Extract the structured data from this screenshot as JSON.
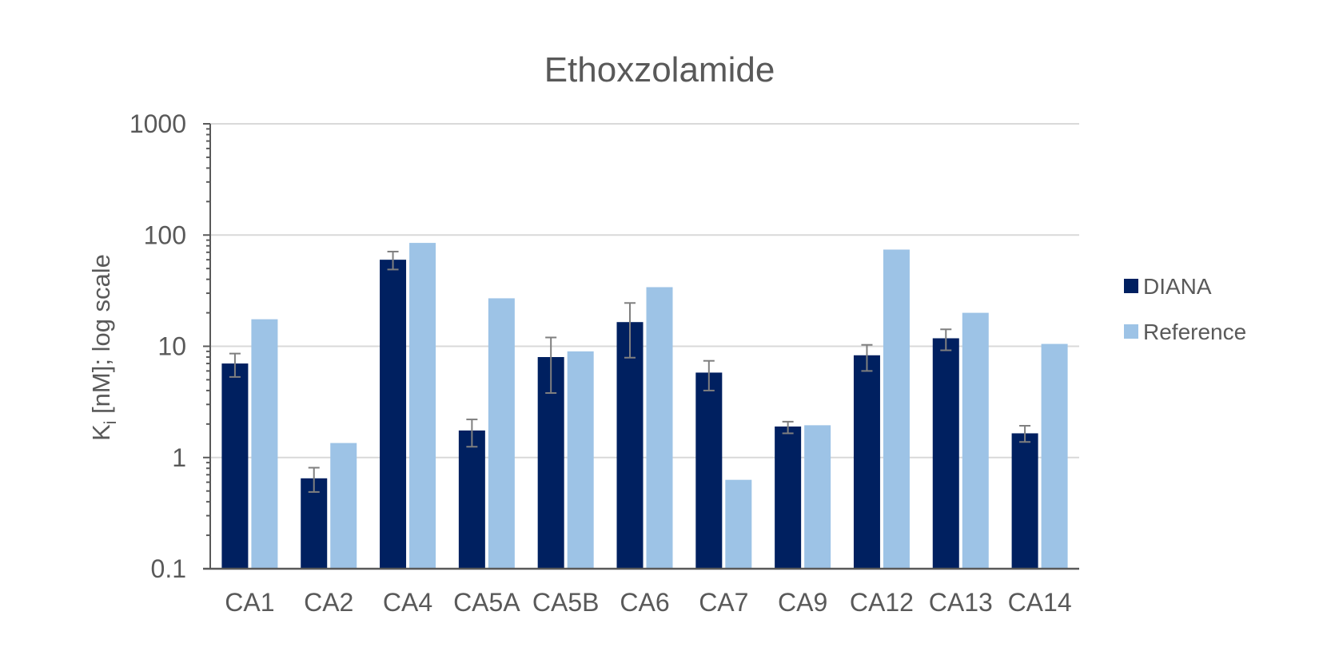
{
  "chart_data": {
    "type": "bar",
    "title": "Ethoxzolamide",
    "ylabel_main": "K",
    "ylabel_sub": "i",
    "ylabel_rest": " [nM]; log scale",
    "xlabel": "",
    "yscale": "log",
    "ylim": [
      0.1,
      1000
    ],
    "yticks": [
      "0.1",
      "1",
      "10",
      "100",
      "1000"
    ],
    "grid": true,
    "legend_position": "right",
    "categories": [
      "CA1",
      "CA2",
      "CA4",
      "CA5A",
      "CA5B",
      "CA6",
      "CA7",
      "CA9",
      "CA12",
      "CA13",
      "CA14"
    ],
    "series": [
      {
        "name": "DIANA",
        "color": "#002060",
        "values": [
          7.0,
          0.65,
          60,
          1.75,
          8.0,
          16.5,
          5.8,
          1.9,
          8.3,
          11.8,
          1.65
        ],
        "err_low": [
          5.3,
          0.49,
          49,
          1.25,
          3.8,
          7.9,
          4.0,
          1.65,
          6.0,
          9.2,
          1.38
        ],
        "err_high": [
          8.6,
          0.81,
          71,
          2.2,
          12.0,
          24.5,
          7.4,
          2.1,
          10.3,
          14.2,
          1.93
        ]
      },
      {
        "name": "Reference",
        "color": "#9DC3E6",
        "values": [
          17.5,
          1.35,
          85,
          27,
          9.0,
          34,
          0.63,
          1.95,
          74,
          20,
          10.5
        ]
      }
    ]
  }
}
